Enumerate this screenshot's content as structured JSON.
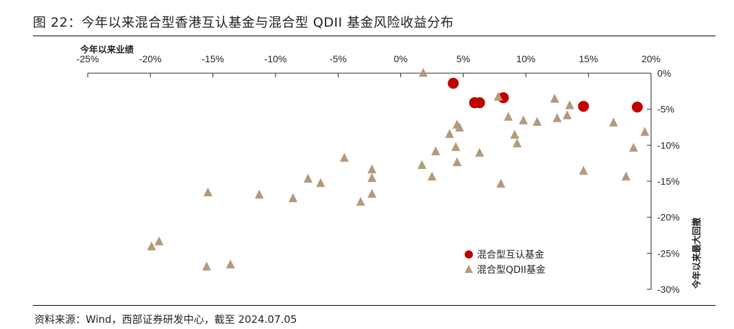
{
  "title": "图 22：今年以来混合型香港互认基金与混合型 QDII 基金风险收益分布",
  "source": "资料来源：Wind，西部证券研发中心，截至 2024.07.05",
  "chart_data": {
    "type": "scatter",
    "xlabel": "今年以来业绩",
    "ylabel": "今年以来最大回撤",
    "xlim": [
      -25,
      20
    ],
    "ylim": [
      -30,
      0
    ],
    "x_ticks": [
      -25,
      -20,
      -15,
      -10,
      -5,
      0,
      5,
      10,
      15,
      20
    ],
    "x_tick_labels": [
      "-25%",
      "-20%",
      "-15%",
      "-10%",
      "-5%",
      "0%",
      "5%",
      "10%",
      "15%",
      "20%"
    ],
    "y_ticks": [
      0,
      -5,
      -10,
      -15,
      -20,
      -25,
      -30
    ],
    "y_tick_labels": [
      "0%",
      "-5%",
      "-10%",
      "-15%",
      "-20%",
      "-25%",
      "-30%"
    ],
    "legend": "bottom-right",
    "colors": {
      "mutual": "#c00000",
      "qdii": "#b49a7a"
    },
    "series": [
      {
        "name": "混合型互认基金",
        "marker": "circle",
        "points": [
          [
            4.2,
            -1.4
          ],
          [
            5.9,
            -4.1
          ],
          [
            6.3,
            -4.1
          ],
          [
            8.2,
            -3.4
          ],
          [
            14.6,
            -4.6
          ],
          [
            18.9,
            -4.7
          ]
        ]
      },
      {
        "name": "混合型QDII基金",
        "marker": "triangle",
        "points": [
          [
            1.8,
            0.0
          ],
          [
            7.8,
            -3.3
          ],
          [
            12.3,
            -3.6
          ],
          [
            13.5,
            -4.5
          ],
          [
            13.3,
            -5.9
          ],
          [
            12.5,
            -6.3
          ],
          [
            8.6,
            -6.1
          ],
          [
            9.8,
            -6.6
          ],
          [
            10.9,
            -6.8
          ],
          [
            17.0,
            -6.9
          ],
          [
            19.5,
            -8.2
          ],
          [
            4.5,
            -7.2
          ],
          [
            4.7,
            -7.6
          ],
          [
            3.9,
            -8.5
          ],
          [
            9.1,
            -8.6
          ],
          [
            9.3,
            -9.8
          ],
          [
            4.4,
            -10.3
          ],
          [
            18.6,
            -10.4
          ],
          [
            2.8,
            -10.9
          ],
          [
            6.3,
            -11.1
          ],
          [
            -4.5,
            -11.8
          ],
          [
            4.5,
            -12.4
          ],
          [
            1.7,
            -12.8
          ],
          [
            -2.3,
            -13.4
          ],
          [
            14.6,
            -13.6
          ],
          [
            -2.3,
            -14.6
          ],
          [
            2.5,
            -14.4
          ],
          [
            -7.4,
            -14.7
          ],
          [
            -6.4,
            -15.3
          ],
          [
            18.0,
            -14.4
          ],
          [
            8.0,
            -15.4
          ],
          [
            -15.4,
            -16.6
          ],
          [
            -11.3,
            -16.9
          ],
          [
            -8.6,
            -17.4
          ],
          [
            -2.3,
            -16.8
          ],
          [
            -3.2,
            -17.9
          ],
          [
            -19.3,
            -23.4
          ],
          [
            -19.9,
            -24.1
          ],
          [
            -15.5,
            -26.9
          ],
          [
            -13.6,
            -26.6
          ]
        ]
      }
    ]
  }
}
